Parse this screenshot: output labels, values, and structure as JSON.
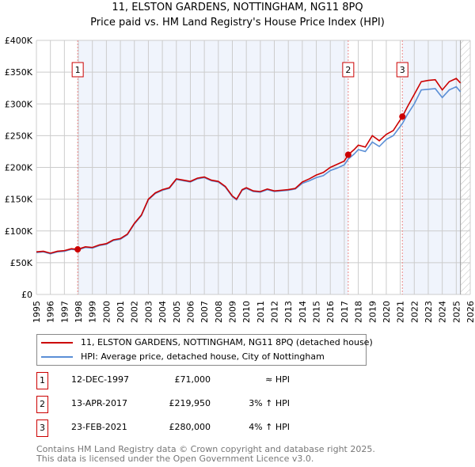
{
  "chart_data": {
    "type": "line",
    "title": "11, ELSTON GARDENS, NOTTINGHAM, NG11 8PQ",
    "subtitle": "Price paid vs. HM Land Registry's House Price Index (HPI)",
    "xlim": [
      1995,
      2026
    ],
    "ylim": [
      0,
      400000
    ],
    "y_ticks": [
      {
        "v": 0,
        "label": "£0"
      },
      {
        "v": 50000,
        "label": "£50K"
      },
      {
        "v": 100000,
        "label": "£100K"
      },
      {
        "v": 150000,
        "label": "£150K"
      },
      {
        "v": 200000,
        "label": "£200K"
      },
      {
        "v": 250000,
        "label": "£250K"
      },
      {
        "v": 300000,
        "label": "£300K"
      },
      {
        "v": 350000,
        "label": "£350K"
      },
      {
        "v": 400000,
        "label": "£400K"
      }
    ],
    "x_ticks": [
      "1995",
      "1996",
      "1997",
      "1998",
      "1999",
      "2000",
      "2001",
      "2002",
      "2003",
      "2004",
      "2005",
      "2006",
      "2007",
      "2008",
      "2009",
      "2010",
      "2011",
      "2012",
      "2013",
      "2014",
      "2015",
      "2016",
      "2017",
      "2018",
      "2019",
      "2020",
      "2021",
      "2022",
      "2023",
      "2024",
      "2025",
      "2026"
    ],
    "grid": true,
    "colors": {
      "property": "#cc0000",
      "hpi": "#5b8fd6",
      "shade": "#f0f4fc"
    },
    "series": [
      {
        "name": "11, ELSTON GARDENS, NOTTINGHAM, NG11 8PQ (detached house)",
        "x": [
          1995,
          1995.5,
          1996,
          1996.5,
          1997,
          1997.5,
          1997.95,
          1998.5,
          1999,
          1999.5,
          2000,
          2000.5,
          2001,
          2001.5,
          2002,
          2002.5,
          2003,
          2003.5,
          2004,
          2004.5,
          2005,
          2005.5,
          2006,
          2006.5,
          2007,
          2007.5,
          2008,
          2008.5,
          2009,
          2009.3,
          2009.7,
          2010,
          2010.5,
          2011,
          2011.5,
          2012,
          2012.5,
          2013,
          2013.5,
          2014,
          2014.5,
          2015,
          2015.5,
          2016,
          2016.5,
          2017,
          2017.28,
          2017.7,
          2018,
          2018.5,
          2019,
          2019.5,
          2020,
          2020.5,
          2021.15,
          2021.5,
          2022,
          2022.5,
          2023,
          2023.5,
          2024,
          2024.5,
          2025,
          2025.3
        ],
        "y": [
          67000,
          68000,
          65000,
          68000,
          69000,
          72000,
          71000,
          75000,
          74000,
          78000,
          80000,
          86000,
          88000,
          95000,
          112000,
          125000,
          150000,
          160000,
          165000,
          168000,
          182000,
          180000,
          178000,
          183000,
          185000,
          180000,
          178000,
          170000,
          155000,
          150000,
          165000,
          168000,
          163000,
          162000,
          166000,
          163000,
          164000,
          165000,
          167000,
          177000,
          182000,
          188000,
          192000,
          200000,
          205000,
          210000,
          219950,
          228000,
          235000,
          232000,
          250000,
          242000,
          252000,
          258000,
          280000,
          295000,
          315000,
          335000,
          337000,
          338000,
          322000,
          335000,
          340000,
          333000
        ]
      },
      {
        "name": "HPI: Average price, detached house, City of Nottingham",
        "x": [
          1995,
          1995.5,
          1996,
          1996.5,
          1997,
          1997.5,
          1997.95,
          1998.5,
          1999,
          1999.5,
          2000,
          2000.5,
          2001,
          2001.5,
          2002,
          2002.5,
          2003,
          2003.5,
          2004,
          2004.5,
          2005,
          2005.5,
          2006,
          2006.5,
          2007,
          2007.5,
          2008,
          2008.5,
          2009,
          2009.3,
          2009.7,
          2010,
          2010.5,
          2011,
          2011.5,
          2012,
          2012.5,
          2013,
          2013.5,
          2014,
          2014.5,
          2015,
          2015.5,
          2016,
          2016.5,
          2017,
          2017.28,
          2017.7,
          2018,
          2018.5,
          2019,
          2019.5,
          2020,
          2020.5,
          2021.15,
          2021.5,
          2022,
          2022.5,
          2023,
          2023.5,
          2024,
          2024.5,
          2025,
          2025.3
        ],
        "y": [
          66000,
          67000,
          64000,
          67000,
          68000,
          71000,
          70000,
          74000,
          73000,
          77000,
          79000,
          85000,
          87000,
          94000,
          111000,
          124000,
          149000,
          159000,
          164000,
          167000,
          181000,
          179000,
          177000,
          182000,
          184000,
          179000,
          177000,
          169000,
          154000,
          149000,
          164000,
          167000,
          162000,
          161000,
          165000,
          162000,
          163000,
          164000,
          166000,
          175000,
          179000,
          184000,
          187000,
          195000,
          199000,
          204000,
          213000,
          221000,
          228000,
          225000,
          240000,
          233000,
          244000,
          250000,
          269000,
          283000,
          300000,
          322000,
          323000,
          324000,
          310000,
          322000,
          327000,
          319000
        ]
      }
    ],
    "sales": [
      {
        "n": "1",
        "x": 1997.95,
        "y": 71000,
        "date": "12-DEC-1997",
        "price": "£71,000",
        "hpi": "≈ HPI"
      },
      {
        "n": "2",
        "x": 2017.28,
        "y": 219950,
        "date": "13-APR-2017",
        "price": "£219,950",
        "hpi": "3% ↑ HPI"
      },
      {
        "n": "3",
        "x": 2021.15,
        "y": 280000,
        "date": "23-FEB-2021",
        "price": "£280,000",
        "hpi": "4% ↑ HPI"
      }
    ],
    "hatch_from": 2025.3
  },
  "legend": {
    "property": "11, ELSTON GARDENS, NOTTINGHAM, NG11 8PQ (detached house)",
    "hpi": "HPI: Average price, detached house, City of Nottingham"
  },
  "footer": {
    "line1": "Contains HM Land Registry data © Crown copyright and database right 2025.",
    "line2": "This data is licensed under the Open Government Licence v3.0."
  }
}
